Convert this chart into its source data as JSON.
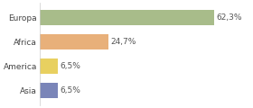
{
  "categories": [
    "Europa",
    "Africa",
    "America",
    "Asia"
  ],
  "values": [
    62.3,
    24.7,
    6.5,
    6.5
  ],
  "labels": [
    "62,3%",
    "24,7%",
    "6,5%",
    "6,5%"
  ],
  "bar_colors": [
    "#a8bc8a",
    "#e8b07a",
    "#e8d060",
    "#7a85b8"
  ],
  "background_color": "#ffffff",
  "xlim": [
    0,
    75
  ],
  "bar_height": 0.65,
  "label_fontsize": 6.5,
  "tick_fontsize": 6.5,
  "figsize": [
    2.8,
    1.2
  ],
  "dpi": 100
}
